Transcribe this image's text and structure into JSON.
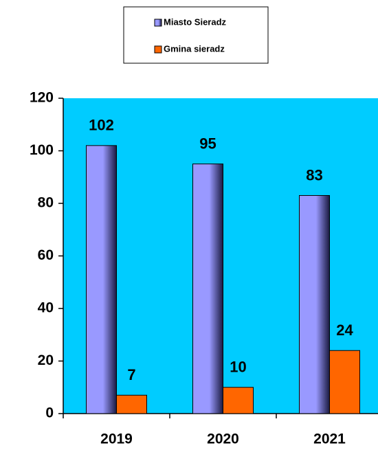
{
  "chart_data": {
    "type": "bar",
    "categories": [
      "2019",
      "2020",
      "2021"
    ],
    "series": [
      {
        "name": "Miasto Sieradz",
        "color": "#9999ff",
        "values": [
          102,
          95,
          83
        ]
      },
      {
        "name": "Gmina sieradz",
        "color": "#ff6600",
        "values": [
          7,
          10,
          24
        ]
      }
    ],
    "ylim": [
      0,
      120
    ],
    "yticks": [
      0,
      20,
      40,
      60,
      80,
      100,
      120
    ],
    "plot_background": "#00ccff",
    "legend": "top"
  }
}
